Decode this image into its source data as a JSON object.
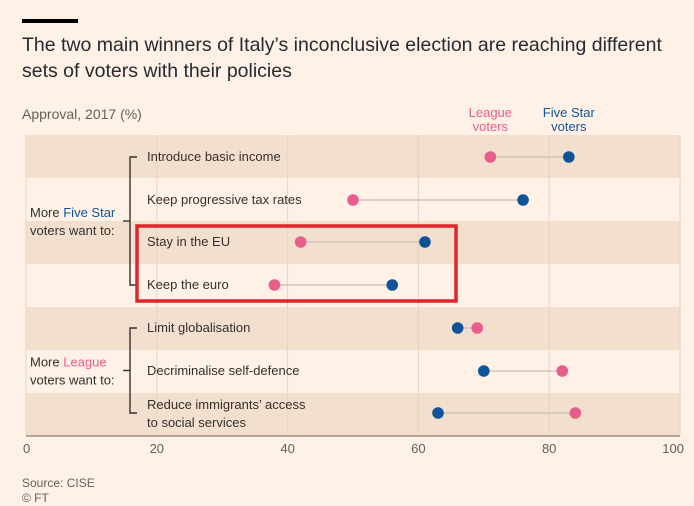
{
  "title": "The two main winners of Italy’s inconclusive election are reaching different sets of voters with their policies",
  "subtitle": "Approval, 2017 (%)",
  "source": [
    "Source: CISE",
    "© FT"
  ],
  "colors": {
    "league": "#e95d8c",
    "five_star": "#0f5499",
    "highlight": "#e0242c"
  },
  "chart_data": {
    "type": "scatter",
    "style": "dot-plot",
    "xlim": [
      0,
      100
    ],
    "xticks": [
      0,
      20,
      40,
      60,
      80,
      100
    ],
    "grid": true,
    "legend_placement": "top-right",
    "categories": [
      [
        "Introduce basic income"
      ],
      [
        "Keep progressive tax rates"
      ],
      [
        "Stay in the EU"
      ],
      [
        "Keep the euro"
      ],
      [
        "Limit globalisation"
      ],
      [
        "Decriminalise self-defence"
      ],
      [
        "Reduce immigrants’ access",
        "to social services"
      ]
    ],
    "series": [
      {
        "name": [
          "League",
          "voters"
        ],
        "color": "#e95d8c",
        "values": [
          71,
          50,
          42,
          38,
          69,
          82,
          84
        ]
      },
      {
        "name": [
          "Five Star",
          "voters"
        ],
        "color": "#0f5499",
        "values": [
          83,
          76,
          61,
          56,
          66,
          70,
          63
        ]
      }
    ],
    "groups": [
      {
        "prefix": "More ",
        "party": "Five Star",
        "suffix": "voters want to:",
        "color": "#0f5499",
        "rows": [
          0,
          1,
          2,
          3
        ]
      },
      {
        "prefix": "More ",
        "party": "League",
        "suffix": "voters want to:",
        "color": "#e95d8c",
        "rows": [
          4,
          5,
          6
        ]
      }
    ],
    "highlighted_rows": [
      2,
      3
    ]
  }
}
